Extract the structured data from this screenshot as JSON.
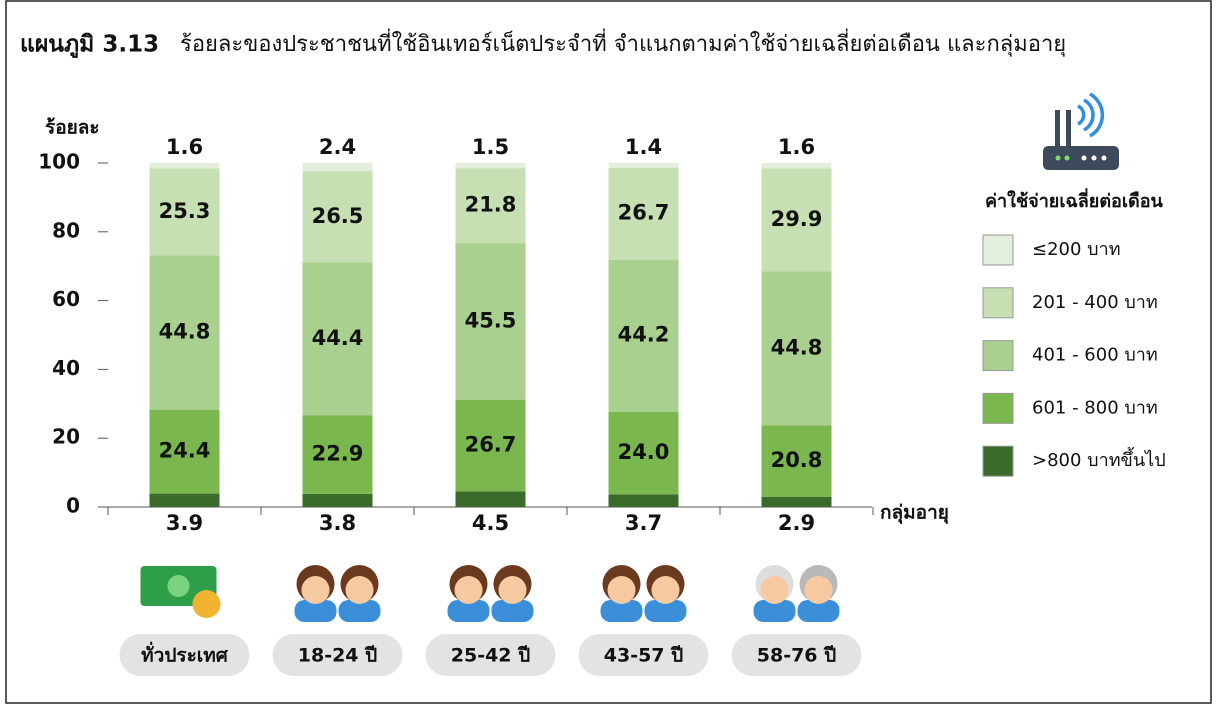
{
  "chart_data": {
    "type": "stacked_bar",
    "figure_label": "แผนภูมิ 3.13",
    "title": "ร้อยละของประชาชนที่ใช้อินเทอร์เน็ตประจำที่  จำแนกตามค่าใช้จ่ายเฉลี่ยต่อเดือน และกลุ่มอายุ",
    "y_label": "ร้อยละ",
    "x_label": "กลุ่มอายุ",
    "legend_title": "ค่าใช้จ่ายเฉลี่ยต่อเดือน",
    "categories": [
      "ทั่วประเทศ",
      "18-24 ปี",
      "25-42 ปี",
      "43-57 ปี",
      "58-76 ปี"
    ],
    "series": [
      {
        "name": "≤200 บาท",
        "color": "#e2efda",
        "values": [
          1.6,
          2.4,
          1.5,
          1.4,
          1.6
        ]
      },
      {
        "name": "201 - 400 บาท",
        "color": "#c6e0b4",
        "values": [
          25.3,
          26.5,
          21.8,
          26.7,
          29.9
        ]
      },
      {
        "name": "401 - 600 บาท",
        "color": "#a9d08e",
        "values": [
          44.8,
          44.4,
          45.5,
          44.2,
          44.8
        ]
      },
      {
        "name": "601 - 800 บาท",
        "color": "#7ab84f",
        "values": [
          24.4,
          22.9,
          26.7,
          24.0,
          20.8
        ],
        "value_labels": [
          "24.4",
          "22.9",
          "26.7",
          "24.0",
          "20.8"
        ]
      },
      {
        "name": ">800 บาทขึ้นไป",
        "color": "#3b6b2b",
        "values": [
          3.9,
          3.8,
          4.5,
          3.7,
          2.9
        ]
      }
    ],
    "ylim": [
      0,
      100
    ],
    "yticks": [
      0,
      20,
      40,
      60,
      80,
      100
    ],
    "grid": false
  }
}
